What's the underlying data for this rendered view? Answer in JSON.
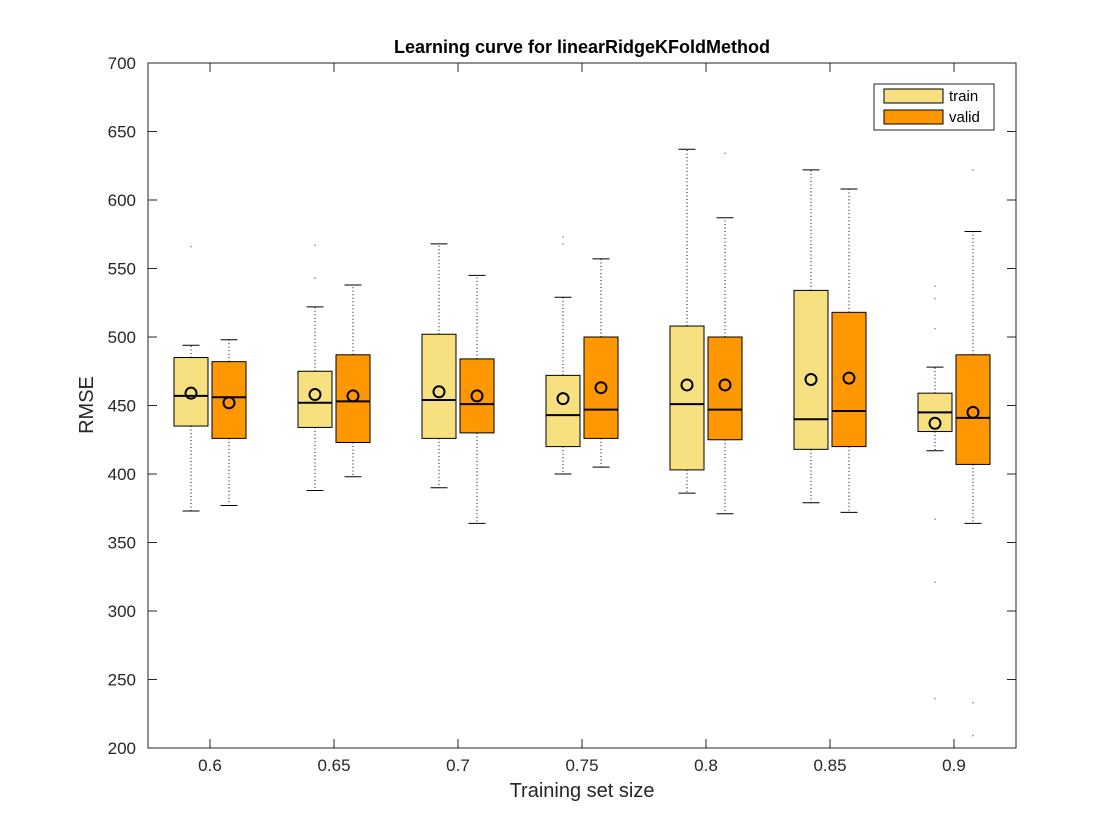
{
  "chart_data": {
    "type": "box",
    "title": "Learning curve for linearRidgeKFoldMethod",
    "xlabel": "Training set size",
    "ylabel": "RMSE",
    "ylim": [
      200,
      700
    ],
    "yticks": [
      "200",
      "250",
      "300",
      "350",
      "400",
      "450",
      "500",
      "550",
      "600",
      "650",
      "700"
    ],
    "categories": [
      "0.6",
      "0.65",
      "0.7",
      "0.75",
      "0.8",
      "0.85",
      "0.9"
    ],
    "legend_position": "top-right",
    "grid": false,
    "colors": {
      "train": "#f7e07f",
      "valid": "#ff9800",
      "edge": "#000000"
    },
    "series": [
      {
        "name": "train",
        "boxes": [
          {
            "whisker_low": 373,
            "q1": 435,
            "median": 457,
            "q3": 485,
            "whisker_high": 494,
            "mean": 459,
            "outliers": [
              566
            ]
          },
          {
            "whisker_low": 388,
            "q1": 434,
            "median": 452,
            "q3": 475,
            "whisker_high": 522,
            "mean": 458,
            "outliers": [
              543,
              567
            ]
          },
          {
            "whisker_low": 390,
            "q1": 426,
            "median": 454,
            "q3": 502,
            "whisker_high": 568,
            "mean": 460,
            "outliers": []
          },
          {
            "whisker_low": 400,
            "q1": 420,
            "median": 443,
            "q3": 472,
            "whisker_high": 529,
            "mean": 455,
            "outliers": [
              568,
              573
            ]
          },
          {
            "whisker_low": 386,
            "q1": 403,
            "median": 451,
            "q3": 508,
            "whisker_high": 637,
            "mean": 465,
            "outliers": []
          },
          {
            "whisker_low": 379,
            "q1": 418,
            "median": 440,
            "q3": 534,
            "whisker_high": 622,
            "mean": 469,
            "outliers": []
          },
          {
            "whisker_low": 417,
            "q1": 431,
            "median": 445,
            "q3": 459,
            "whisker_high": 478,
            "mean": 437,
            "outliers": [
              236,
              321,
              367,
              506,
              528,
              537
            ]
          }
        ]
      },
      {
        "name": "valid",
        "boxes": [
          {
            "whisker_low": 377,
            "q1": 426,
            "median": 456,
            "q3": 482,
            "whisker_high": 498,
            "mean": 452,
            "outliers": []
          },
          {
            "whisker_low": 398,
            "q1": 423,
            "median": 453,
            "q3": 487,
            "whisker_high": 538,
            "mean": 457,
            "outliers": []
          },
          {
            "whisker_low": 364,
            "q1": 430,
            "median": 451,
            "q3": 484,
            "whisker_high": 545,
            "mean": 457,
            "outliers": []
          },
          {
            "whisker_low": 405,
            "q1": 426,
            "median": 447,
            "q3": 500,
            "whisker_high": 557,
            "mean": 463,
            "outliers": []
          },
          {
            "whisker_low": 371,
            "q1": 425,
            "median": 447,
            "q3": 500,
            "whisker_high": 587,
            "mean": 465,
            "outliers": [
              634
            ]
          },
          {
            "whisker_low": 372,
            "q1": 420,
            "median": 446,
            "q3": 518,
            "whisker_high": 608,
            "mean": 470,
            "outliers": []
          },
          {
            "whisker_low": 364,
            "q1": 407,
            "median": 441,
            "q3": 487,
            "whisker_high": 577,
            "mean": 445,
            "outliers": [
              209,
              233,
              622
            ]
          }
        ]
      }
    ]
  }
}
